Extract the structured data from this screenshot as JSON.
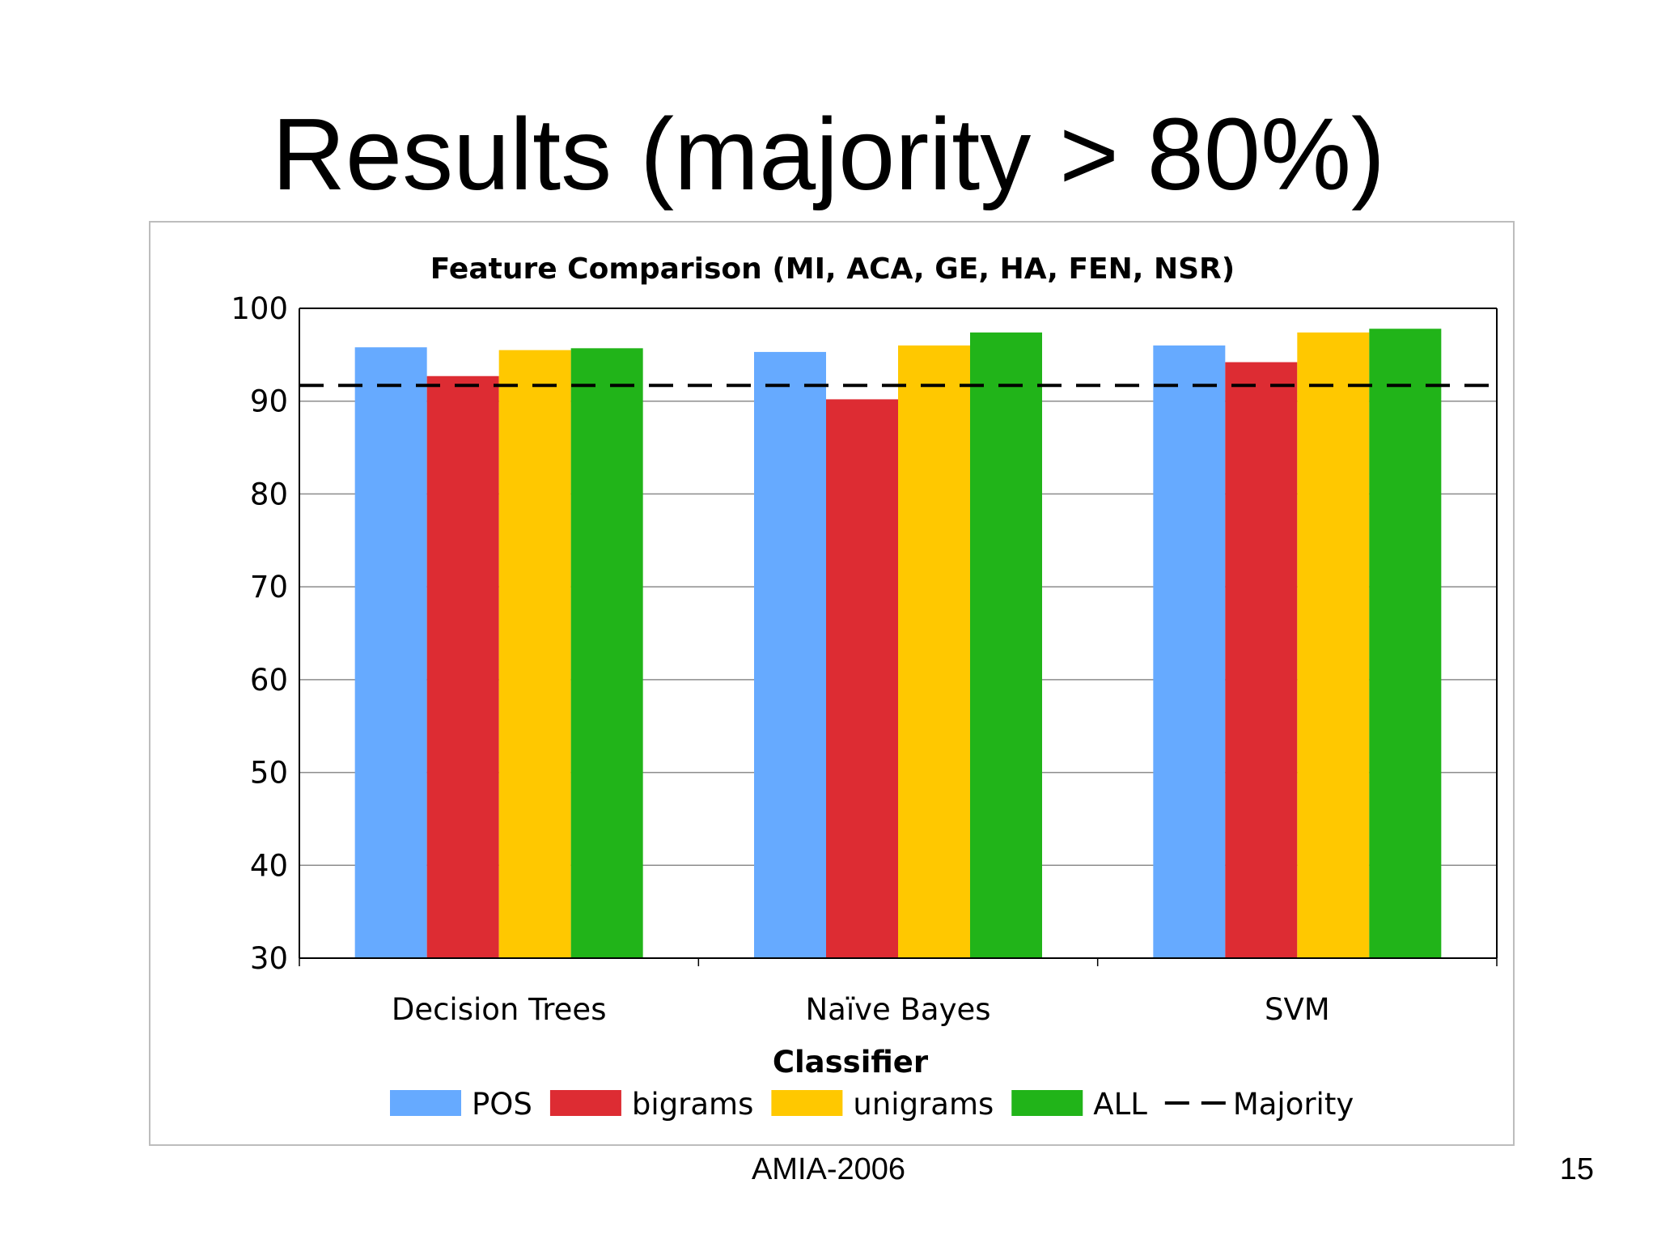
{
  "slide": {
    "title": "Results (majority > 80%)",
    "footer": "AMIA-2006",
    "page_number": "15"
  },
  "chart_data": {
    "type": "bar",
    "title": "Feature Comparison (MI, ACA, GE, HA, FEN, NSR)",
    "xlabel": "Classifier",
    "ylabel": "",
    "ylim": [
      30,
      100
    ],
    "yticks": [
      30,
      40,
      50,
      60,
      70,
      80,
      90,
      100
    ],
    "grid": true,
    "legend_position": "bottom",
    "categories": [
      "Decision Trees",
      "Naïve Bayes",
      "SVM"
    ],
    "series": [
      {
        "name": "POS",
        "color": "#66aaff",
        "values": [
          95.8,
          95.3,
          96.0
        ]
      },
      {
        "name": "bigrams",
        "color": "#dd2c33",
        "values": [
          92.7,
          90.2,
          94.2
        ]
      },
      {
        "name": "unigrams",
        "color": "#ffc800",
        "values": [
          95.5,
          96.0,
          97.4
        ]
      },
      {
        "name": "ALL",
        "color": "#21b419",
        "values": [
          95.7,
          97.4,
          97.8
        ]
      }
    ],
    "reference_line": {
      "name": "Majority",
      "value": 91.7,
      "style": "dashed",
      "color": "#000000"
    }
  }
}
